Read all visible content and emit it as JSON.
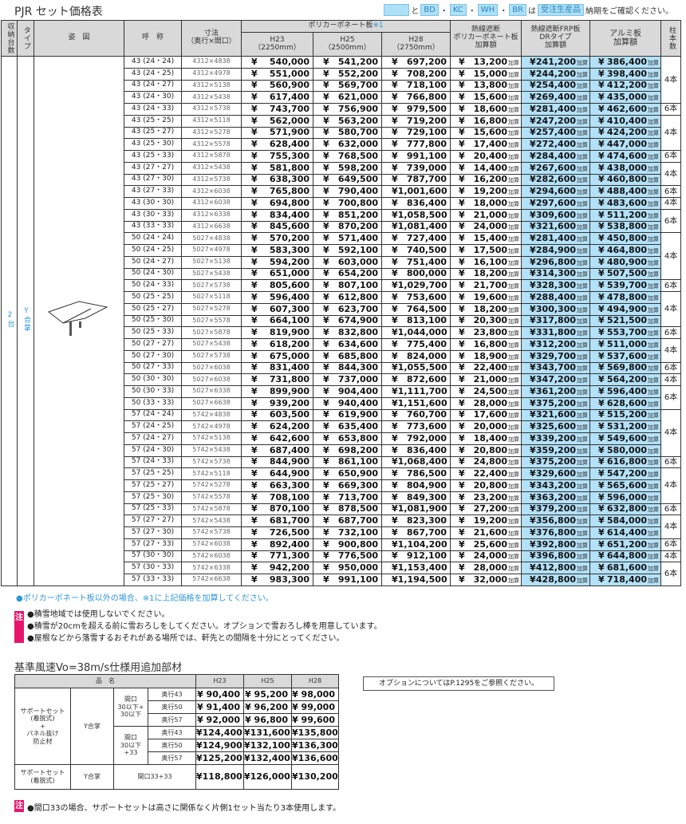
{
  "title": "PJR セット価格表",
  "legend": {
    "and": "と",
    "colors": [
      "BD",
      "KC",
      "WH",
      "BR"
    ],
    "sep": "・",
    "ha": "は",
    "made_to_order": "受注生産品",
    "suffix": "納期をご確認ください。",
    "swatch_color": "#b3e1f8"
  },
  "headers": {
    "count": "収納台数",
    "type": "タイプ",
    "figure": "姿　図",
    "name": "呼　称",
    "size": "寸法\n（奥行×間口）",
    "poly": "ポリカーボネート板",
    "poly_note": "※1",
    "h23": "H23",
    "h23_sub": "（2250mm）",
    "h25": "H25",
    "h25_sub": "（2500mm）",
    "h28": "H28",
    "h28_sub": "（2750mm）",
    "heat_poly": "熱線遮断\nポリカーボネート板\n加算額",
    "frp": "熱線遮断FRP板\nDRタイプ\n加算額",
    "alumi": "アルミ板\n加算額",
    "pillars": "柱本数"
  },
  "count_value": "2台",
  "type_value": "Y合掌",
  "currency": "¥",
  "add_suffix": "加算",
  "rows": [
    [
      "43 (24・24)",
      "4312×4838",
      "540,000",
      "541,200",
      "697,200",
      "13,200",
      "241,200",
      "386,400"
    ],
    [
      "43 (24・25)",
      "4312×4978",
      "551,000",
      "552,200",
      "708,200",
      "15,000",
      "244,200",
      "398,400"
    ],
    [
      "43 (24・27)",
      "4312×5138",
      "560,900",
      "569,700",
      "718,100",
      "13,800",
      "254,400",
      "412,200"
    ],
    [
      "43 (24・30)",
      "4312×5438",
      "617,400",
      "621,000",
      "766,800",
      "15,600",
      "269,400",
      "435,000"
    ],
    [
      "43 (24・33)",
      "4312×5738",
      "743,700",
      "756,900",
      "979,500",
      "18,600",
      "281,400",
      "462,600"
    ],
    [
      "43 (25・25)",
      "4312×5118",
      "562,000",
      "563,200",
      "719,200",
      "16,800",
      "247,200",
      "410,400"
    ],
    [
      "43 (25・27)",
      "4312×5278",
      "571,900",
      "580,700",
      "729,100",
      "15,600",
      "257,400",
      "424,200"
    ],
    [
      "43 (25・30)",
      "4312×5578",
      "628,400",
      "632,000",
      "777,800",
      "17,400",
      "272,400",
      "447,000"
    ],
    [
      "43 (25・33)",
      "4312×5878",
      "755,300",
      "768,500",
      "991,100",
      "20,400",
      "284,400",
      "474,600"
    ],
    [
      "43 (27・27)",
      "4312×5438",
      "581,800",
      "598,200",
      "739,000",
      "14,400",
      "267,600",
      "438,000"
    ],
    [
      "43 (27・30)",
      "4312×5738",
      "638,300",
      "649,500",
      "787,700",
      "16,200",
      "282,600",
      "460,800"
    ],
    [
      "43 (27・33)",
      "4312×6038",
      "765,800",
      "790,400",
      "1,001,600",
      "19,200",
      "294,600",
      "488,400"
    ],
    [
      "43 (30・30)",
      "4312×6038",
      "694,800",
      "700,800",
      "836,400",
      "18,000",
      "297,600",
      "483,600"
    ],
    [
      "43 (30・33)",
      "4312×6338",
      "834,400",
      "851,200",
      "1,058,500",
      "21,000",
      "309,600",
      "511,200"
    ],
    [
      "43 (33・33)",
      "4312×6638",
      "845,600",
      "870,200",
      "1,081,400",
      "24,000",
      "321,600",
      "538,800"
    ],
    [
      "50 (24・24)",
      "5027×4838",
      "570,200",
      "571,400",
      "727,400",
      "15,400",
      "281,400",
      "450,800"
    ],
    [
      "50 (24・25)",
      "5027×4978",
      "583,300",
      "592,100",
      "740,500",
      "17,500",
      "284,900",
      "464,800"
    ],
    [
      "50 (24・27)",
      "5027×5138",
      "594,200",
      "603,000",
      "751,400",
      "16,100",
      "296,800",
      "480,900"
    ],
    [
      "50 (24・30)",
      "5027×5438",
      "651,000",
      "654,200",
      "800,000",
      "18,200",
      "314,300",
      "507,500"
    ],
    [
      "50 (24・33)",
      "5027×5738",
      "805,600",
      "807,100",
      "1,029,700",
      "21,700",
      "328,300",
      "539,700"
    ],
    [
      "50 (25・25)",
      "5027×5118",
      "596,400",
      "612,800",
      "753,600",
      "19,600",
      "288,400",
      "478,800"
    ],
    [
      "50 (25・27)",
      "5027×5278",
      "607,300",
      "623,700",
      "764,500",
      "18,200",
      "300,300",
      "494,900"
    ],
    [
      "50 (25・30)",
      "5027×5578",
      "664,100",
      "674,900",
      "813,100",
      "20,300",
      "317,800",
      "521,500"
    ],
    [
      "50 (25・33)",
      "5027×5878",
      "819,900",
      "832,800",
      "1,044,000",
      "23,800",
      "331,800",
      "553,700"
    ],
    [
      "50 (27・27)",
      "5027×5438",
      "618,200",
      "634,600",
      "775,400",
      "16,800",
      "312,200",
      "511,000"
    ],
    [
      "50 (27・30)",
      "5027×5738",
      "675,000",
      "685,800",
      "824,000",
      "18,900",
      "329,700",
      "537,600"
    ],
    [
      "50 (27・33)",
      "5027×6038",
      "831,400",
      "844,300",
      "1,055,500",
      "22,400",
      "343,700",
      "569,800"
    ],
    [
      "50 (30・30)",
      "5027×6038",
      "731,800",
      "737,000",
      "872,600",
      "21,000",
      "347,200",
      "564,200"
    ],
    [
      "50 (30・33)",
      "5027×6338",
      "899,900",
      "904,400",
      "1,111,700",
      "24,500",
      "361,200",
      "596,400"
    ],
    [
      "50 (33・33)",
      "5027×6638",
      "939,200",
      "940,400",
      "1,151,600",
      "28,000",
      "375,200",
      "628,600"
    ],
    [
      "57 (24・24)",
      "5742×4838",
      "603,500",
      "619,900",
      "760,700",
      "17,600",
      "321,600",
      "515,200"
    ],
    [
      "57 (24・25)",
      "5742×4978",
      "624,200",
      "635,400",
      "773,600",
      "20,000",
      "325,600",
      "531,200"
    ],
    [
      "57 (24・27)",
      "5742×5138",
      "642,600",
      "653,800",
      "792,000",
      "18,400",
      "339,200",
      "549,600"
    ],
    [
      "57 (24・30)",
      "5742×5438",
      "687,400",
      "698,200",
      "836,400",
      "20,800",
      "359,200",
      "580,000"
    ],
    [
      "57 (24・33)",
      "5742×5738",
      "844,900",
      "861,100",
      "1,068,400",
      "24,800",
      "375,200",
      "616,800"
    ],
    [
      "57 (25・25)",
      "5742×5118",
      "644,900",
      "650,900",
      "786,500",
      "22,400",
      "329,600",
      "547,200"
    ],
    [
      "57 (25・27)",
      "5742×5278",
      "663,300",
      "669,300",
      "804,900",
      "20,800",
      "343,200",
      "565,600"
    ],
    [
      "57 (25・30)",
      "5742×5578",
      "708,100",
      "713,700",
      "849,300",
      "23,200",
      "363,200",
      "596,000"
    ],
    [
      "57 (25・33)",
      "5742×5878",
      "870,100",
      "878,500",
      "1,081,900",
      "27,200",
      "379,200",
      "632,800"
    ],
    [
      "57 (27・27)",
      "5742×5438",
      "681,700",
      "687,700",
      "823,300",
      "19,200",
      "356,800",
      "584,000"
    ],
    [
      "57 (27・30)",
      "5742×5738",
      "726,500",
      "732,100",
      "867,700",
      "21,600",
      "376,800",
      "614,400"
    ],
    [
      "57 (27・33)",
      "5742×6038",
      "892,400",
      "900,800",
      "1,104,200",
      "25,600",
      "392,800",
      "651,200"
    ],
    [
      "57 (30・30)",
      "5742×6038",
      "771,300",
      "776,500",
      "912,100",
      "24,000",
      "396,800",
      "644,800"
    ],
    [
      "57 (30・33)",
      "5742×6338",
      "942,200",
      "950,000",
      "1,153,400",
      "28,000",
      "412,800",
      "681,600"
    ],
    [
      "57 (33・33)",
      "5742×6638",
      "983,300",
      "991,100",
      "1,194,500",
      "32,000",
      "428,800",
      "718,400"
    ]
  ],
  "pillars": [
    {
      "label": "4本",
      "rows": 4
    },
    {
      "label": "6本",
      "rows": 1
    },
    {
      "label": "4本",
      "rows": 3
    },
    {
      "label": "6本",
      "rows": 1
    },
    {
      "label": "4本",
      "rows": 2
    },
    {
      "label": "6本",
      "rows": 1
    },
    {
      "label": "4本",
      "rows": 1
    },
    {
      "label": "6本",
      "rows": 2
    },
    {
      "label": "4本",
      "rows": 4
    },
    {
      "label": "6本",
      "rows": 1
    },
    {
      "label": "4本",
      "rows": 3
    },
    {
      "label": "6本",
      "rows": 1
    },
    {
      "label": "4本",
      "rows": 2
    },
    {
      "label": "6本",
      "rows": 1
    },
    {
      "label": "4本",
      "rows": 1
    },
    {
      "label": "6本",
      "rows": 2
    },
    {
      "label": "4本",
      "rows": 4
    },
    {
      "label": "6本",
      "rows": 1
    },
    {
      "label": "4本",
      "rows": 3
    },
    {
      "label": "6本",
      "rows": 1
    },
    {
      "label": "4本",
      "rows": 2
    },
    {
      "label": "6本",
      "rows": 1
    },
    {
      "label": "4本",
      "rows": 1
    },
    {
      "label": "6本",
      "rows": 2
    }
  ],
  "note_blue": "●ポリカーボネート板以外の場合、※1に上記価格を加算してください。",
  "note_mark": "注",
  "notes": [
    "●積雪地域では使用しないでください。",
    "●積雪が20cmを超える前に雪おろしをしてください。オプションで雪おろし棒を用意しています。",
    "●屋根などから落雪するおそれがある場所では、軒先との間隔を十分にとってください。"
  ],
  "wind": {
    "title": "基準風速Vo=38m/s仕様用追加部材",
    "header": {
      "name": "品　名",
      "h23": "H23",
      "h25": "H25",
      "h28": "H28"
    },
    "item1": "サポートセット\n(着脱式)\n+\nパネル抜け\n防止材",
    "item2": "サポートセット\n(着脱式)",
    "type": "Y合掌",
    "group1": "間口\n30以下+\n30以下",
    "group2": "間口\n30以下+33",
    "group3": "間口33+33",
    "rows": [
      [
        "奥行43",
        "¥  90,400",
        "¥  95,200",
        "¥  98,000"
      ],
      [
        "奥行50",
        "¥  91,400",
        "¥  96,200",
        "¥  99,000"
      ],
      [
        "奥行57",
        "¥  92,000",
        "¥  96,800",
        "¥  99,600"
      ],
      [
        "奥行43",
        "¥124,400",
        "¥131,600",
        "¥135,800"
      ],
      [
        "奥行50",
        "¥124,900",
        "¥132,100",
        "¥136,300"
      ],
      [
        "奥行57",
        "¥125,200",
        "¥132,400",
        "¥136,600"
      ]
    ],
    "last": [
      "¥118,800",
      "¥126,000",
      "¥130,200"
    ],
    "note": "●間口33の場合、サポートセットは高さに関係なく片側1セット当たり3本使用します。"
  },
  "option_note": "オプションについてはP.1295をご参照ください。"
}
